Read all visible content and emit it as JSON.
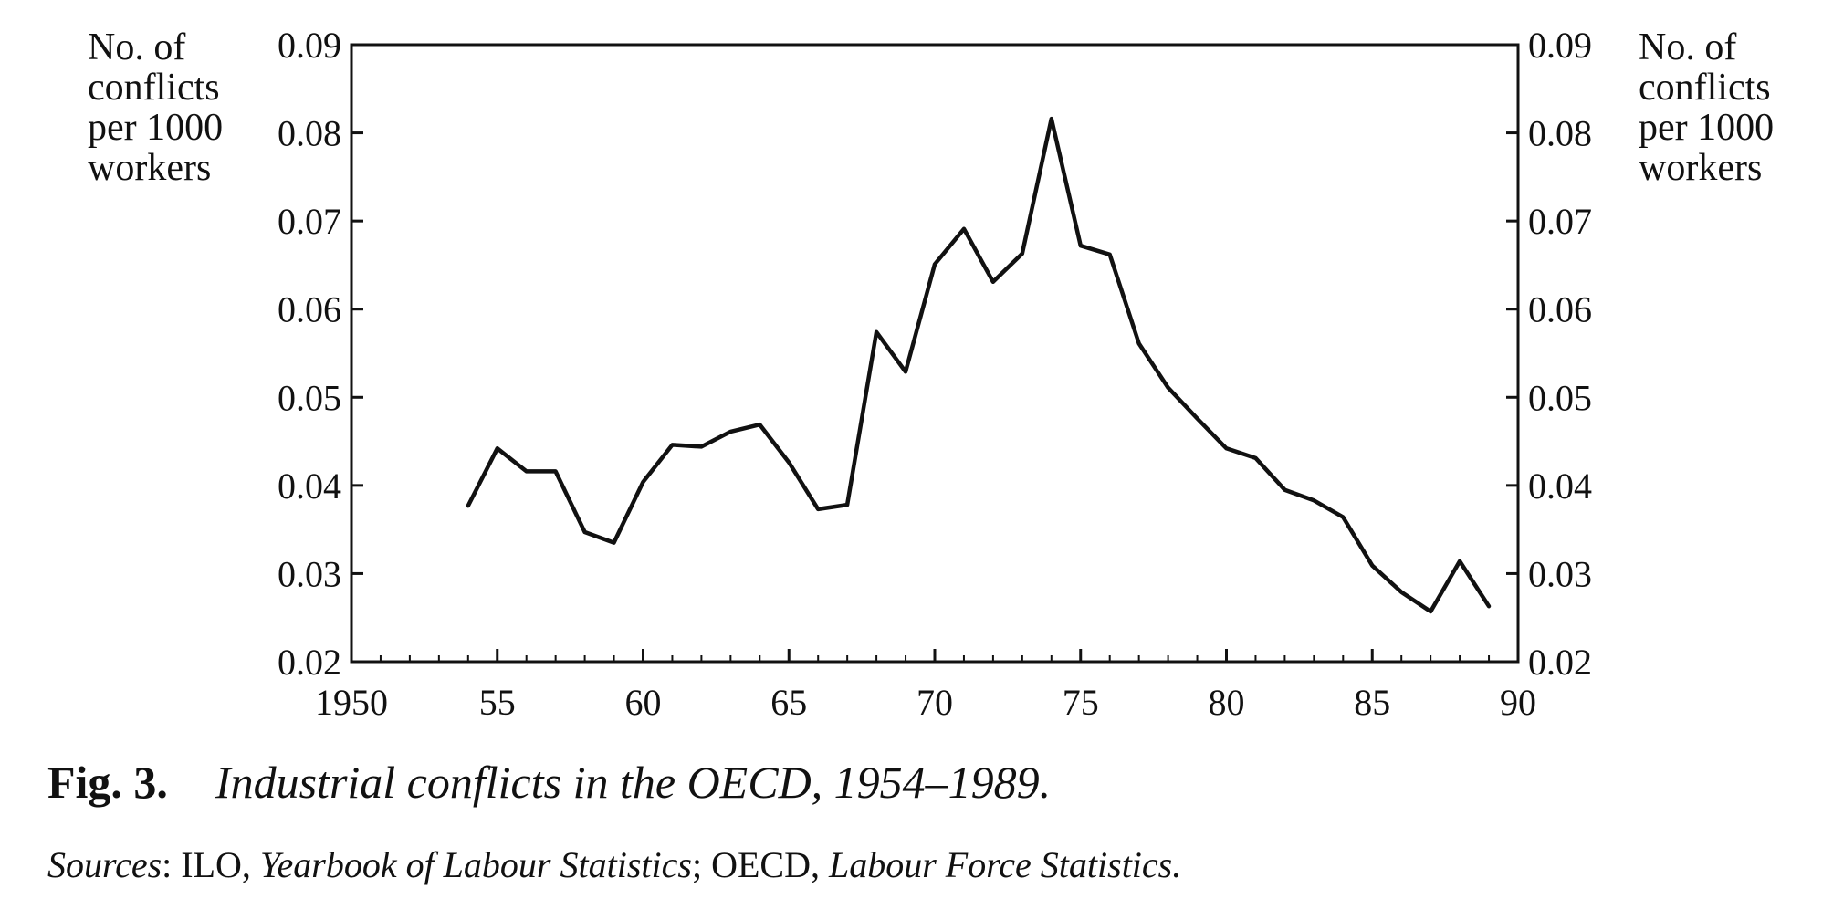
{
  "chart_data": {
    "type": "line",
    "ylabel_left": "No. of\nconflicts\nper 1000\nworkers",
    "ylabel_right": "No. of\nconflicts\nper 1000\nworkers",
    "xlim": [
      1950,
      1990
    ],
    "ylim": [
      0.02,
      0.09
    ],
    "x_ticks": [
      {
        "value": 1950,
        "label": "1950"
      },
      {
        "value": 1955,
        "label": "55"
      },
      {
        "value": 1960,
        "label": "60"
      },
      {
        "value": 1965,
        "label": "65"
      },
      {
        "value": 1970,
        "label": "70"
      },
      {
        "value": 1975,
        "label": "75"
      },
      {
        "value": 1980,
        "label": "80"
      },
      {
        "value": 1985,
        "label": "85"
      },
      {
        "value": 1990,
        "label": "90"
      }
    ],
    "y_ticks": [
      {
        "value": 0.02,
        "label": "0.02"
      },
      {
        "value": 0.03,
        "label": "0.03"
      },
      {
        "value": 0.04,
        "label": "0.04"
      },
      {
        "value": 0.05,
        "label": "0.05"
      },
      {
        "value": 0.06,
        "label": "0.06"
      },
      {
        "value": 0.07,
        "label": "0.07"
      },
      {
        "value": 0.08,
        "label": "0.08"
      },
      {
        "value": 0.09,
        "label": "0.09"
      }
    ],
    "grid": false,
    "series": [
      {
        "x": [
          1954,
          1955,
          1956,
          1957,
          1958,
          1959,
          1960,
          1961,
          1962,
          1963,
          1964,
          1965,
          1966,
          1967,
          1968,
          1969,
          1970,
          1971,
          1972,
          1973,
          1974,
          1975,
          1976,
          1977,
          1978,
          1979,
          1980,
          1981,
          1982,
          1983,
          1984,
          1985,
          1986,
          1987,
          1988,
          1989
        ],
        "y": [
          0.0377,
          0.0442,
          0.0416,
          0.0416,
          0.0347,
          0.0335,
          0.0404,
          0.0446,
          0.0444,
          0.0461,
          0.0469,
          0.0426,
          0.0373,
          0.0378,
          0.0574,
          0.0529,
          0.0651,
          0.0691,
          0.0631,
          0.0663,
          0.0816,
          0.0672,
          0.0662,
          0.0561,
          0.0511,
          0.0476,
          0.0442,
          0.0431,
          0.0395,
          0.0383,
          0.0364,
          0.0309,
          0.0279,
          0.0257,
          0.0314,
          0.0263
        ]
      }
    ]
  },
  "caption": {
    "label": "Fig. 3.",
    "title": "Industrial conflicts in the OECD, 1954–1989."
  },
  "sources": {
    "prefix": "Sources",
    "sep1": ": ILO, ",
    "ref1": "Yearbook of Labour Statistics",
    "sep2": "; OECD, ",
    "ref2": "Labour Force Statistics."
  }
}
